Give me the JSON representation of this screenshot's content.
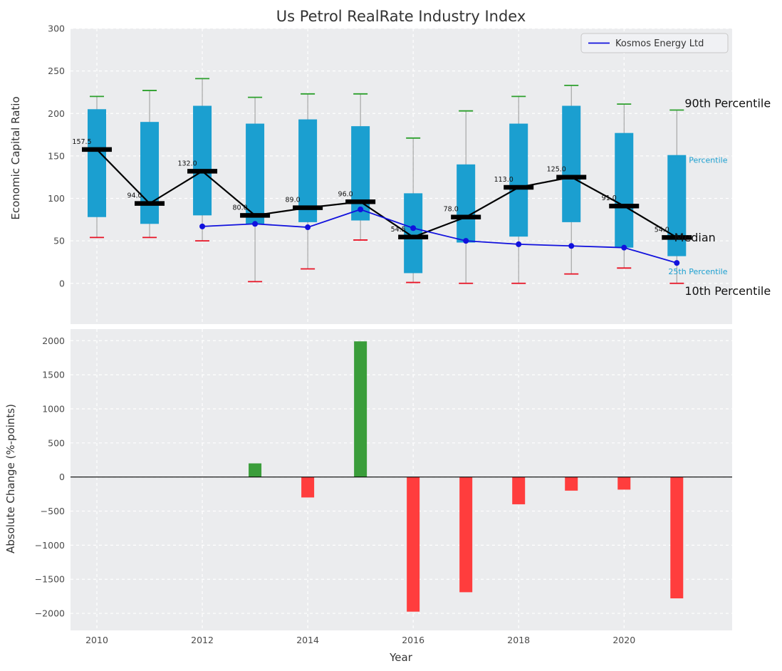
{
  "title": "Us Petrol RealRate Industry Index",
  "legend": {
    "label": "Kosmos Energy Ltd"
  },
  "top_panel": {
    "ylabel": "Economic Capital Ratio"
  },
  "bottom_panel": {
    "ylabel": "Absolute Change (%-points)",
    "xlabel": "Year"
  },
  "chart_data": [
    {
      "type": "box",
      "title": "Us Petrol RealRate Industry Index",
      "ylabel": "Economic Capital Ratio",
      "ylim": [
        -48,
        300
      ],
      "yticks": [
        0,
        50,
        100,
        150,
        200,
        250,
        300
      ],
      "xlim": [
        2009.5,
        2022.05
      ],
      "xticks": [
        2010,
        2012,
        2014,
        2016,
        2018,
        2020
      ],
      "grid": true,
      "legend_position": "upper right",
      "years": [
        2010,
        2011,
        2012,
        2013,
        2014,
        2015,
        2016,
        2017,
        2018,
        2019,
        2020,
        2021
      ],
      "p90": [
        220,
        227,
        241,
        219,
        223,
        223,
        171,
        203,
        220,
        233,
        211,
        204
      ],
      "q3": [
        205,
        190,
        209,
        188,
        193,
        185,
        106,
        140,
        188,
        209,
        177,
        151
      ],
      "median": [
        157.5,
        94.0,
        132.0,
        80.0,
        89.0,
        96.0,
        54.5,
        78.0,
        113.0,
        125.0,
        91.0,
        54.0
      ],
      "q1": [
        78,
        70,
        80,
        70,
        72,
        74,
        12,
        48,
        55,
        72,
        42,
        32
      ],
      "p10": [
        54,
        54,
        50,
        2,
        17,
        51,
        1,
        0,
        0,
        11,
        18,
        0
      ],
      "median_labels": [
        "157.5",
        "94.0",
        "132.0",
        "80.0",
        "89.0",
        "96.0",
        "54.5",
        "78.0",
        "113.0",
        "125.0",
        "91.0",
        "54.0"
      ],
      "series": [
        {
          "name": "Kosmos Energy Ltd",
          "color": "#1111dd",
          "x": [
            2012,
            2013,
            2014,
            2015,
            2016,
            2017,
            2018,
            2019,
            2020,
            2021
          ],
          "y": [
            67,
            70,
            66,
            87,
            65,
            50,
            46,
            44,
            42,
            24
          ]
        }
      ],
      "box_color": "#1b9fd0",
      "median_color": "#000000",
      "median_line_color": "#000000",
      "p90_cap_color": "#2ca02c",
      "p10_cap_color": "#e81123",
      "whisker_color": "#999999",
      "annotations": [
        {
          "label": "90th Percentile",
          "x": 2021.15,
          "y": 212,
          "color": "#111111",
          "size": 16
        },
        {
          "label": "75th Percentile",
          "x": 2020.84,
          "y": 145,
          "color": "#1b9fd0",
          "size": 11
        },
        {
          "label": "Median",
          "x": 2020.95,
          "y": 54,
          "color": "#111111",
          "size": 16
        },
        {
          "label": "25th Percentile",
          "x": 2020.84,
          "y": 14,
          "color": "#1b9fd0",
          "size": 11
        },
        {
          "label": "10th Percentile",
          "x": 2021.15,
          "y": -9,
          "color": "#111111",
          "size": 16
        }
      ]
    },
    {
      "type": "bar",
      "ylabel": "Absolute Change (%-points)",
      "xlabel": "Year",
      "ylim": [
        -2250,
        2170
      ],
      "yticks": [
        -2000,
        -1500,
        -1000,
        -500,
        0,
        500,
        1000,
        1500,
        2000
      ],
      "xlim": [
        2009.5,
        2022.05
      ],
      "xticks": [
        2010,
        2012,
        2014,
        2016,
        2018,
        2020
      ],
      "grid": true,
      "years": [
        2010,
        2011,
        2012,
        2013,
        2014,
        2015,
        2016,
        2017,
        2018,
        2019,
        2020,
        2021
      ],
      "values": [
        null,
        null,
        null,
        200,
        -300,
        1990,
        -1975,
        -1690,
        -400,
        -200,
        -185,
        -1780
      ],
      "positive_color": "#3a9d3a",
      "negative_color": "#ff3d3d",
      "zero_line_color": "#000000"
    }
  ]
}
